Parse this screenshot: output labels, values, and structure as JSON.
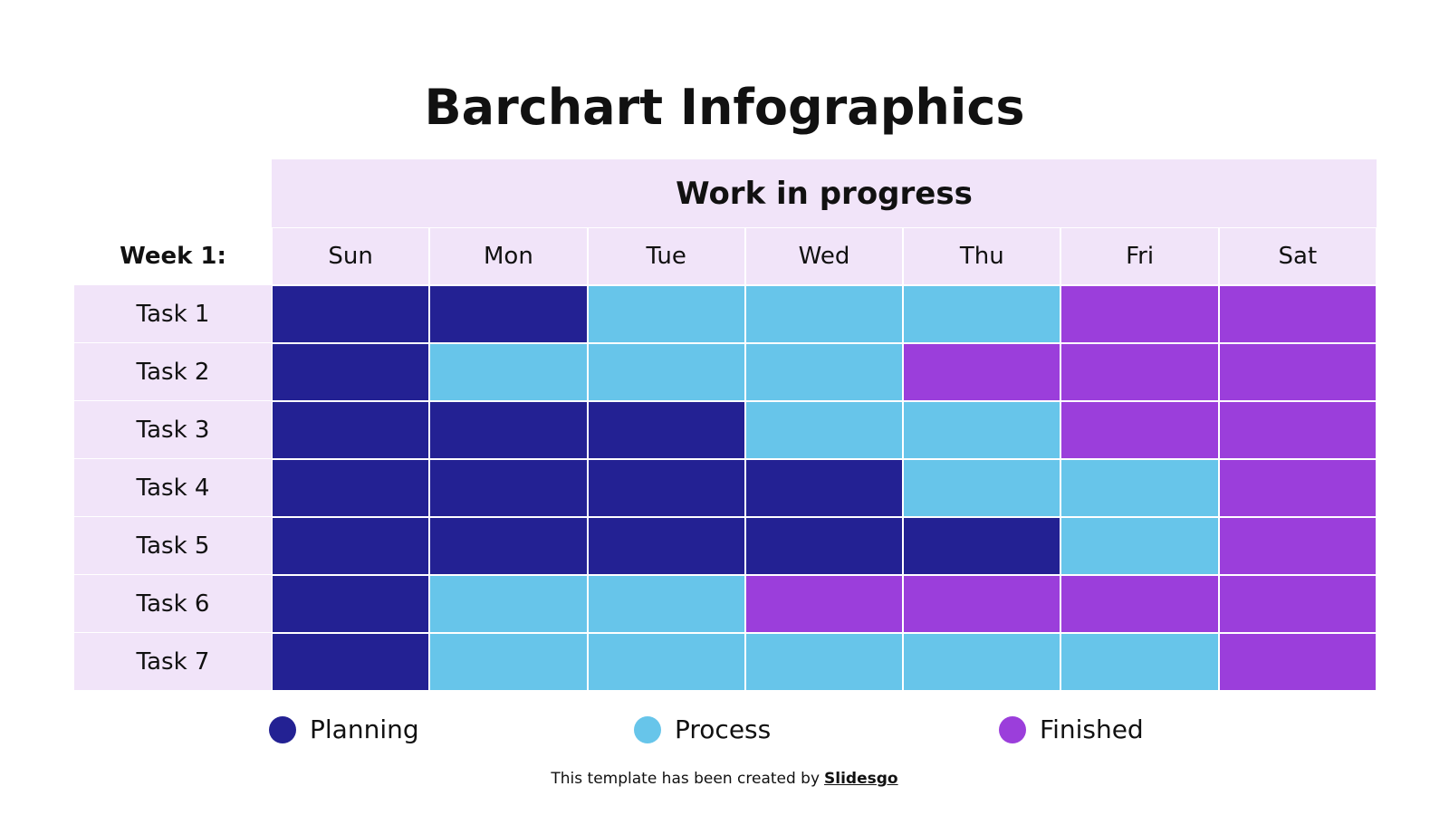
{
  "title": "Barchart Infographics",
  "table": {
    "header": "Work in progress",
    "week_label": "Week 1:",
    "days": [
      "Sun",
      "Mon",
      "Tue",
      "Wed",
      "Thu",
      "Fri",
      "Sat"
    ],
    "rows": [
      {
        "label": "Task 1",
        "days": [
          2,
          3,
          2
        ]
      },
      {
        "label": "Task 2",
        "days": [
          1,
          3,
          3
        ]
      },
      {
        "label": "Task 3",
        "days": [
          3,
          2,
          2
        ]
      },
      {
        "label": "Task 4",
        "days": [
          4,
          2,
          1
        ]
      },
      {
        "label": "Task 5",
        "days": [
          5,
          1,
          1
        ]
      },
      {
        "label": "Task 6",
        "days": [
          1,
          2,
          4
        ]
      },
      {
        "label": "Task 7",
        "days": [
          1,
          5,
          1
        ]
      }
    ]
  },
  "legend": [
    {
      "label": "Planning",
      "color": "#232193"
    },
    {
      "label": "Process",
      "color": "#67c5ea"
    },
    {
      "label": "Finished",
      "color": "#9b3edb"
    }
  ],
  "footer": {
    "text": "This template has been created by",
    "link": "Slidesgo"
  }
}
